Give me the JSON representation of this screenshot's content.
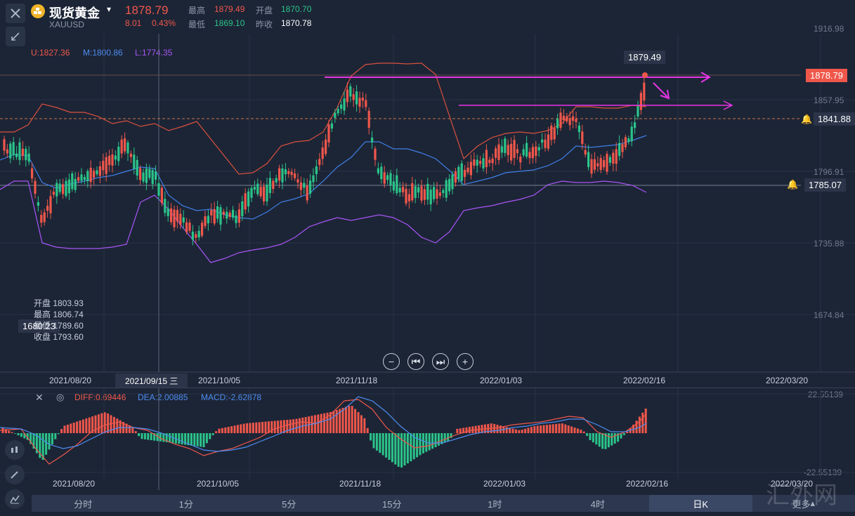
{
  "header": {
    "title": "现货黄金",
    "symbol": "XAUUSD",
    "price": "1878.79",
    "change": "8.01",
    "change_pct": "0.43%",
    "labels": {
      "high": "最高",
      "low": "最低",
      "open": "开盘",
      "prev_close": "昨收"
    },
    "high": "1879.49",
    "low": "1869.10",
    "open": "1870.70",
    "prev_close": "1870.78"
  },
  "indicators": {
    "boll_u": "U:1827.36",
    "boll_m": "M:1800.86",
    "boll_l": "L:1774.35",
    "diff": "DIFF:0.69446",
    "dea": "DEA:2.00885",
    "macd": "MACD:-2.62878"
  },
  "colors": {
    "up": "#f0574b",
    "down": "#2bc48a",
    "upper": "#d9503f",
    "mid": "#3f7fe6",
    "lower": "#a855f7",
    "annot": "#e635e6",
    "bg": "#1c2536"
  },
  "price_axis": [
    "1916.98",
    "1857.95",
    "1796.91",
    "1735.88",
    "1674.84"
  ],
  "price_tags": {
    "current": "1878.79",
    "max": "1879.49",
    "alert1": "1841.88",
    "alert2": "1785.07",
    "min": "1680.23"
  },
  "crosshair_date": "2021/09/15 三",
  "x_axis": [
    "2021/08/20",
    "2021/10/05",
    "2021/11/18",
    "2022/01/03",
    "2022/02/16",
    "2022/03/20"
  ],
  "ohlc_panel": {
    "open_label": "开盘",
    "open": "1803.93",
    "high_label": "最高",
    "high": "1806.74",
    "low_label": "最低",
    "low": "1789.60",
    "close_label": "收盘",
    "close": "1793.60"
  },
  "macd_axis": {
    "top": "22.55139",
    "bottom": "-22.55139"
  },
  "timeframes": [
    "分时",
    "1分",
    "5分",
    "15分",
    "1时",
    "4时",
    "日K"
  ],
  "active_timeframe": "日K",
  "more": "更多",
  "watermark": "汇外网",
  "chart_data": {
    "type": "candlestick",
    "x_range": [
      "2021/08/20",
      "2022/03/20"
    ],
    "y_range": [
      1674.84,
      1916.98
    ],
    "bollinger_last": {
      "upper": 1827.36,
      "mid": 1800.86,
      "lower": 1774.35
    },
    "last_candle": {
      "open": 1870.7,
      "high": 1879.49,
      "low": 1869.1,
      "close": 1878.79
    },
    "crosshair": {
      "date": "2021/09/15",
      "open": 1803.93,
      "high": 1806.74,
      "low": 1789.6,
      "close": 1793.6
    },
    "macd_last": {
      "diff": 0.69446,
      "dea": 2.00885,
      "macd": -2.62878
    }
  }
}
